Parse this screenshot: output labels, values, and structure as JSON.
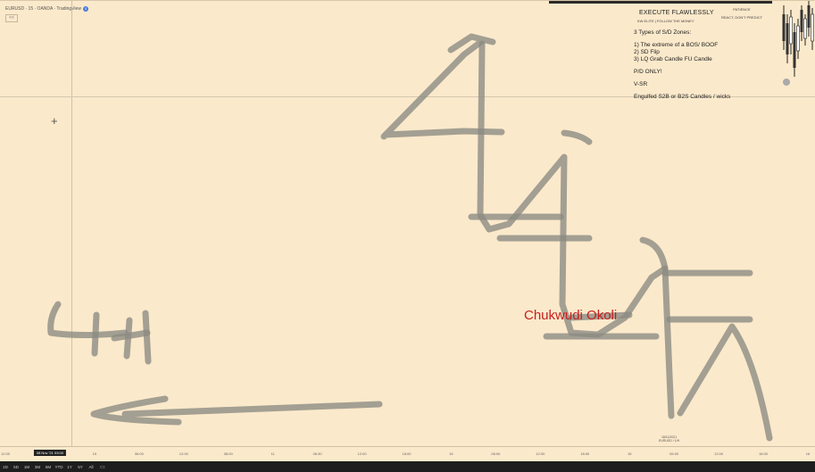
{
  "symbol": {
    "text": "EURUSD · 15 · OANDA · TradingView",
    "badge": "0"
  },
  "collapse_label": "<<",
  "notes": {
    "title": "EXECUTE FLAWLESSLY",
    "subtitle": "KW ELITE | FOLLOW THE MONEY",
    "lines": [
      "3 Types of S/D Zones:",
      "1) The extreme of a BOS/ BOOF",
      "2) SD Flip",
      "3) LQ Grab Candle FU Candle",
      "P/D ONLY!",
      "V-SR",
      "Engulfed S2B or B2S Candles / wicks"
    ]
  },
  "patience": {
    "line1": "PATIENCE",
    "line2": "REACT, DON'T PREDICT"
  },
  "watermark": "Chukwudi Okoli",
  "date_label": {
    "line1": "18/11/2021",
    "line2": "EURUSD / 1/H"
  },
  "time_axis": {
    "ticks": [
      "12:00",
      "08 Nov '21 03:00",
      "15",
      "06:00",
      "12:00",
      "08:00",
      "11",
      "06:30",
      "12:00",
      "18:00",
      "15",
      "06:00",
      "12:00",
      "18:00",
      "15",
      "06:00",
      "12:00",
      "18:00",
      "16"
    ],
    "active_index": 1
  },
  "timeframes": [
    "1D",
    "5D",
    "1M",
    "3M",
    "6M",
    "YTD",
    "1Y",
    "5Y",
    "All"
  ],
  "colors": {
    "background": "#fbe9cb",
    "drawing_stroke": "#8a8a82",
    "watermark": "#c71e1e",
    "toolbar": "#1e1e1e"
  },
  "icons": {
    "cursor": "crosshair-plus-icon",
    "date_range": "calendar-icon"
  }
}
